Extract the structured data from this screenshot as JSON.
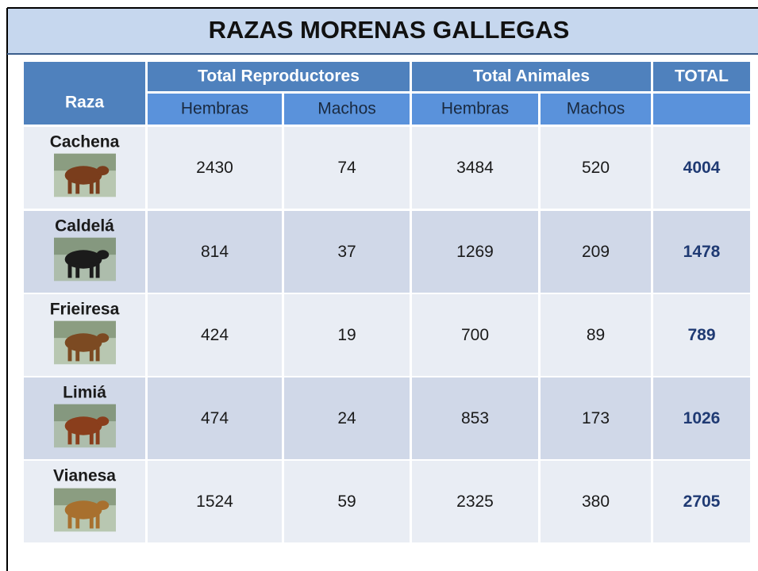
{
  "header": {
    "title": "RAZAS MORENAS GALLEGAS"
  },
  "table": {
    "raza_header": "Raza",
    "group_headers": [
      "Total Reproductores",
      "Total Animales",
      "TOTAL"
    ],
    "sub_headers": [
      "Hembras",
      "Machos",
      "Hembras",
      "Machos"
    ],
    "rows": [
      {
        "raza": "Cachena",
        "values": [
          2430,
          74,
          3484,
          520,
          4004
        ]
      },
      {
        "raza": "Caldelá",
        "values": [
          814,
          37,
          1269,
          209,
          1478
        ]
      },
      {
        "raza": "Frieiresa",
        "values": [
          424,
          19,
          700,
          89,
          789
        ]
      },
      {
        "raza": "Limiá",
        "values": [
          474,
          24,
          853,
          173,
          1026
        ]
      },
      {
        "raza": "Vianesa",
        "values": [
          1524,
          59,
          2325,
          380,
          2705
        ]
      }
    ]
  }
}
